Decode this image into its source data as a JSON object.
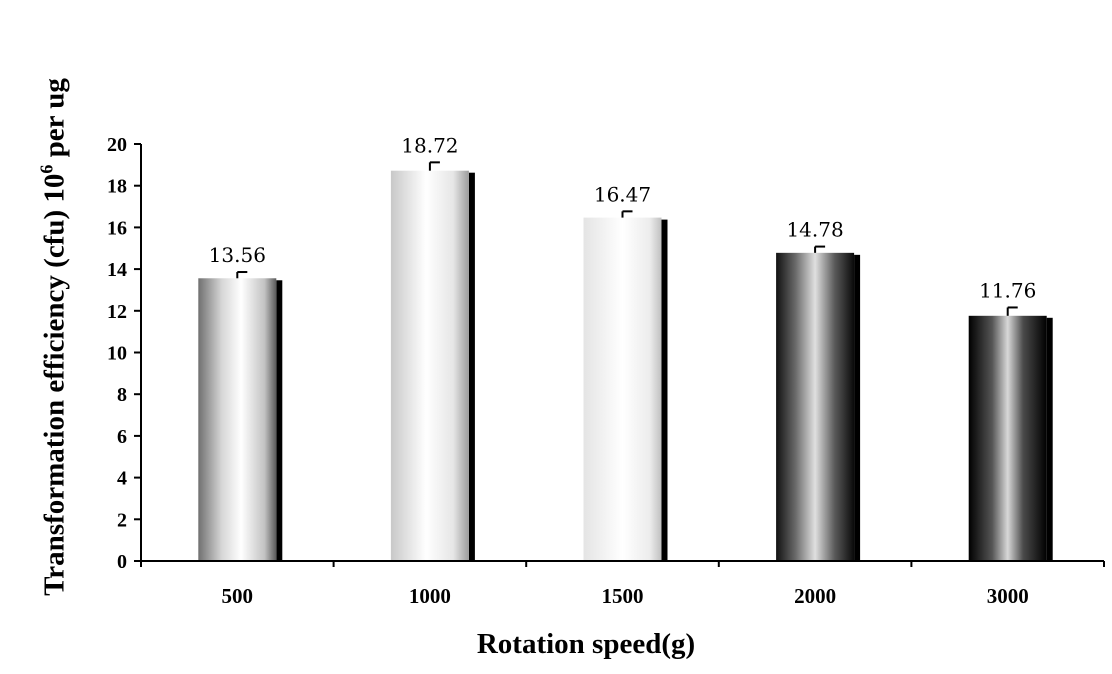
{
  "chart_data": {
    "type": "bar",
    "categories": [
      "500",
      "1000",
      "1500",
      "2000",
      "3000"
    ],
    "values": [
      13.56,
      18.72,
      16.47,
      14.78,
      11.76
    ],
    "value_labels": [
      "13.56",
      "18.72",
      "16.47",
      "14.78",
      "11.76"
    ],
    "error": [
      0.3,
      0.4,
      0.3,
      0.3,
      0.4
    ],
    "ylim": [
      0,
      20
    ],
    "ystep": 2,
    "yticks": [
      "0",
      "2",
      "4",
      "6",
      "8",
      "10",
      "12",
      "14",
      "16",
      "18",
      "20"
    ],
    "xlabel": "Rotation speed(g)",
    "ylabel": {
      "before": "Transformation efficiency (cfu) 10",
      "sup": "6",
      "after": " per ug"
    },
    "grid": false,
    "legend": "none"
  }
}
